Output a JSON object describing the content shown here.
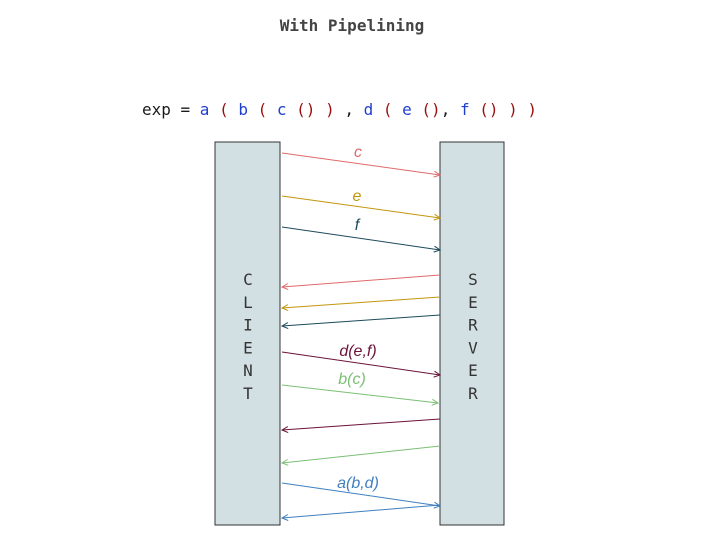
{
  "title": "With Pipelining",
  "expression": {
    "tokens": [
      {
        "text": "exp = ",
        "color": "#1a1a1a"
      },
      {
        "text": "a",
        "color": "#1f3fd1"
      },
      {
        "text": " ( ",
        "color": "#9a1010"
      },
      {
        "text": "b",
        "color": "#1f3fd1"
      },
      {
        "text": " ( ",
        "color": "#9a1010"
      },
      {
        "text": "c",
        "color": "#1f3fd1"
      },
      {
        "text": " () ) ",
        "color": "#9a1010"
      },
      {
        "text": ",",
        "color": "#1a1a1a"
      },
      {
        "text": " d",
        "color": "#1f3fd1"
      },
      {
        "text": " ( ",
        "color": "#9a1010"
      },
      {
        "text": "e",
        "color": "#1f3fd1"
      },
      {
        "text": " ()",
        "color": "#9a1010"
      },
      {
        "text": ",",
        "color": "#1a1a1a"
      },
      {
        "text": " f",
        "color": "#1f3fd1"
      },
      {
        "text": " () ) )",
        "color": "#9a1010"
      }
    ]
  },
  "client_label": "CLIENT",
  "server_label": "SERVER",
  "colors": {
    "box_fill": "#d3e0e3",
    "box_stroke": "#333333",
    "c": "#e06a6a",
    "e": "#c2960c",
    "f": "#1c4a5c",
    "d": "#6b1238",
    "b": "#7cbf74",
    "a": "#3f7fc0"
  },
  "messages": [
    {
      "label": "c",
      "color_key": "c",
      "direction": "to-server"
    },
    {
      "label": "e",
      "color_key": "e",
      "direction": "to-server"
    },
    {
      "label": "f",
      "color_key": "f",
      "direction": "to-server"
    },
    {
      "label": "",
      "color_key": "c",
      "direction": "to-client"
    },
    {
      "label": "",
      "color_key": "e",
      "direction": "to-client"
    },
    {
      "label": "",
      "color_key": "f",
      "direction": "to-client"
    },
    {
      "label": "d(e,f)",
      "color_key": "d",
      "direction": "to-server"
    },
    {
      "label": "b(c)",
      "color_key": "b",
      "direction": "to-server"
    },
    {
      "label": "",
      "color_key": "d",
      "direction": "to-client"
    },
    {
      "label": "",
      "color_key": "b",
      "direction": "to-client"
    },
    {
      "label": "a(b,d)",
      "color_key": "a",
      "direction": "to-server"
    },
    {
      "label": "",
      "color_key": "a",
      "direction": "to-client"
    }
  ]
}
